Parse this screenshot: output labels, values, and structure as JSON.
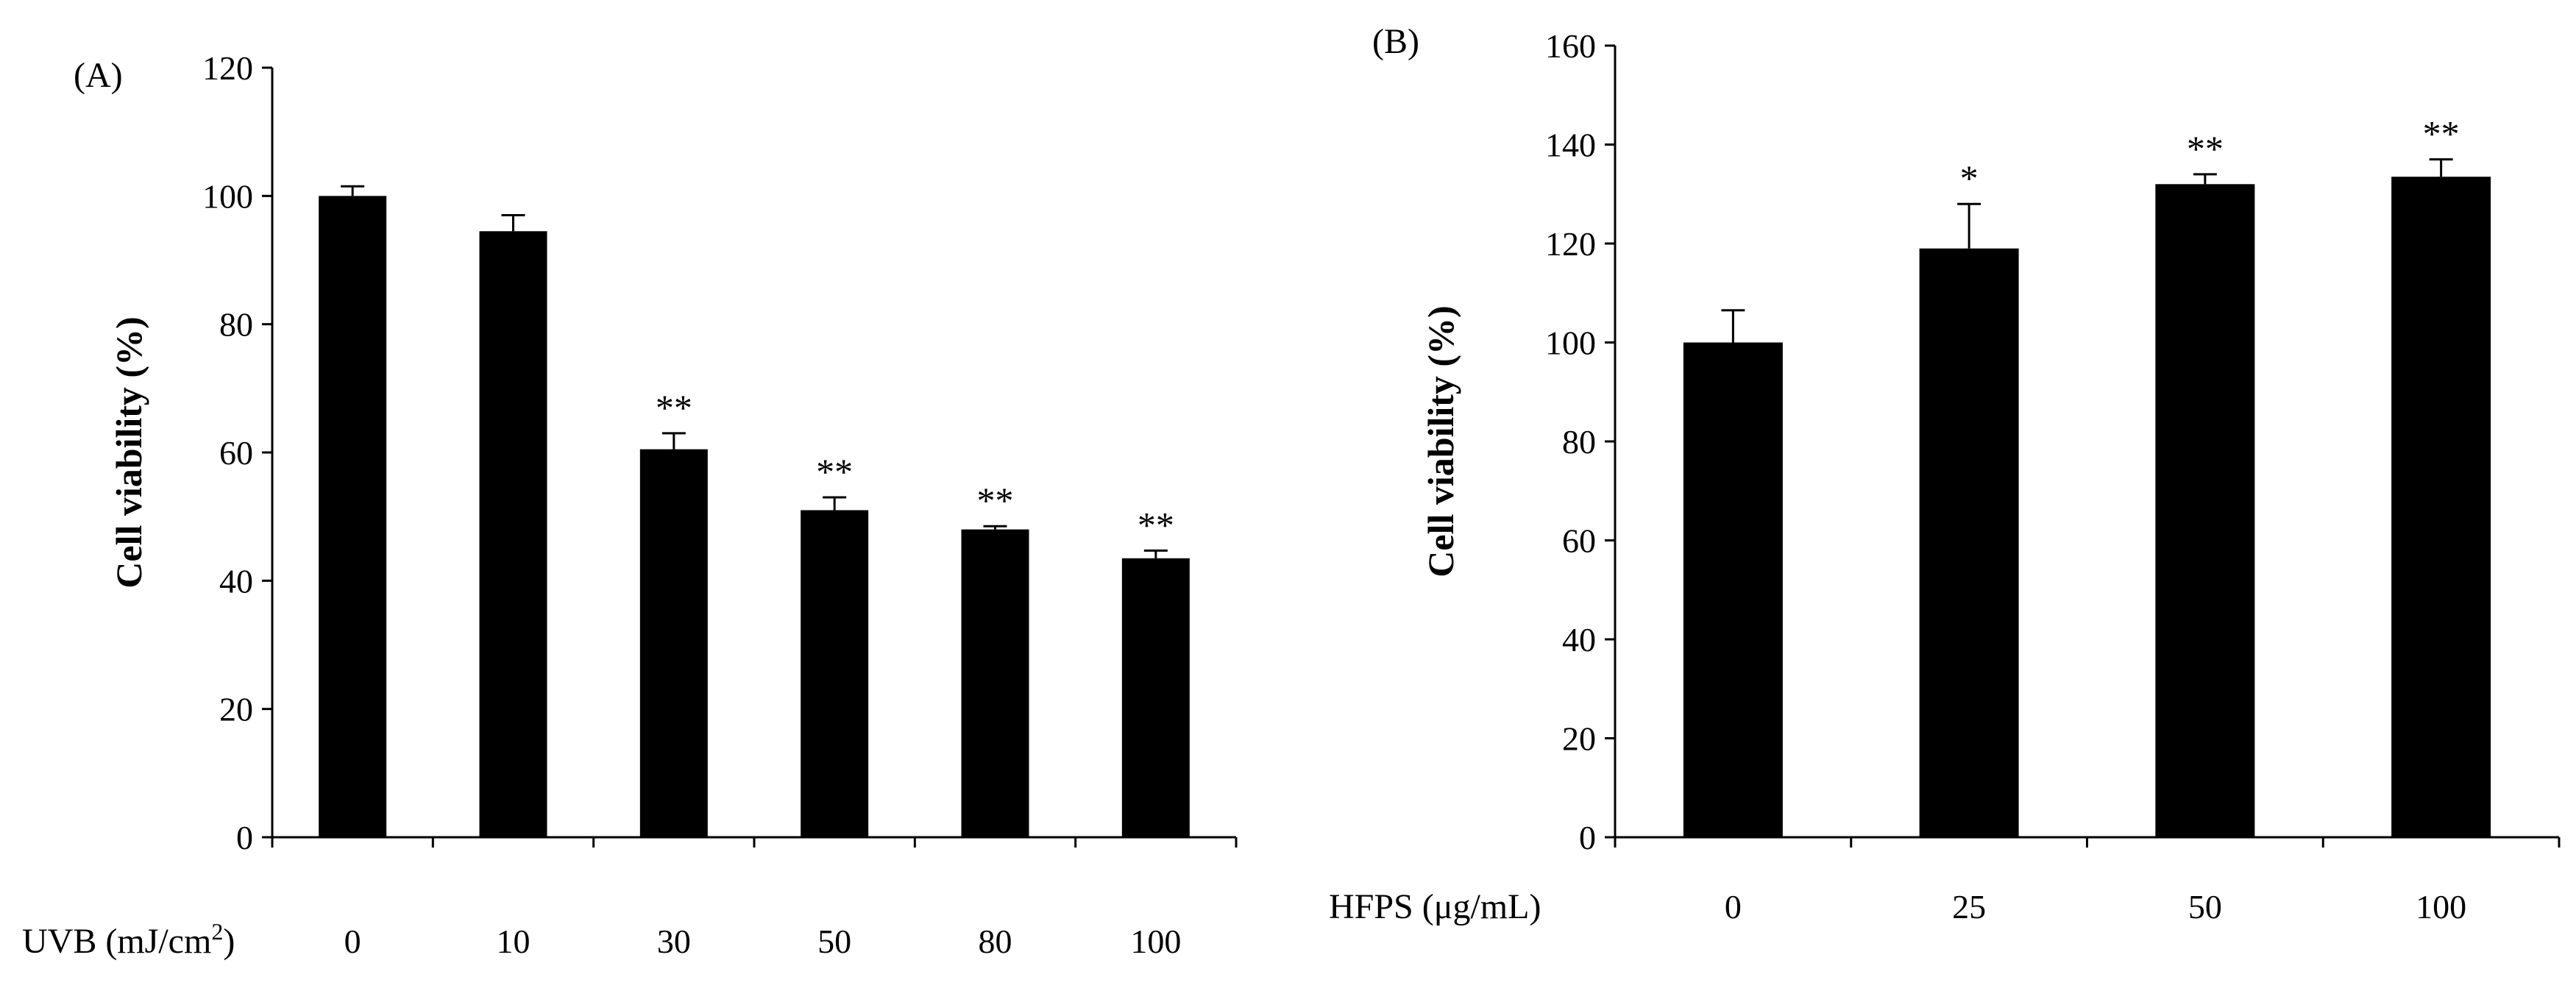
{
  "chart_data": [
    {
      "type": "bar",
      "panel_label": "(A)",
      "title": "",
      "xlabel": {
        "prefix": "UVB (mJ/cm",
        "superscript": "2",
        "suffix": ")"
      },
      "ylabel": "Cell viability (%)",
      "categories": [
        "0",
        "10",
        "30",
        "50",
        "80",
        "100"
      ],
      "values": [
        100,
        94.5,
        60.5,
        51,
        48,
        43.5
      ],
      "errors": [
        1.5,
        2.5,
        2.5,
        2,
        0.5,
        1.2
      ],
      "significance": [
        "",
        "",
        "**",
        "**",
        "**",
        "**"
      ],
      "ylim": [
        0,
        120
      ],
      "yticks": [
        "0",
        "20",
        "40",
        "60",
        "80",
        "100",
        "120"
      ],
      "grid": false,
      "color": "#000000"
    },
    {
      "type": "bar",
      "panel_label": "(B)",
      "title": "",
      "xlabel": {
        "prefix": "HFPS (μg/mL)",
        "superscript": "",
        "suffix": ""
      },
      "ylabel": "Cell viability (%)",
      "categories": [
        "0",
        "25",
        "50",
        "100"
      ],
      "values": [
        100,
        119,
        132,
        133.5
      ],
      "errors": [
        6.5,
        9,
        2,
        3.5
      ],
      "significance": [
        "",
        "*",
        "**",
        "**"
      ],
      "ylim": [
        0,
        160
      ],
      "yticks": [
        "0",
        "20",
        "40",
        "60",
        "80",
        "100",
        "120",
        "140",
        "160"
      ],
      "grid": false,
      "color": "#000000"
    }
  ]
}
